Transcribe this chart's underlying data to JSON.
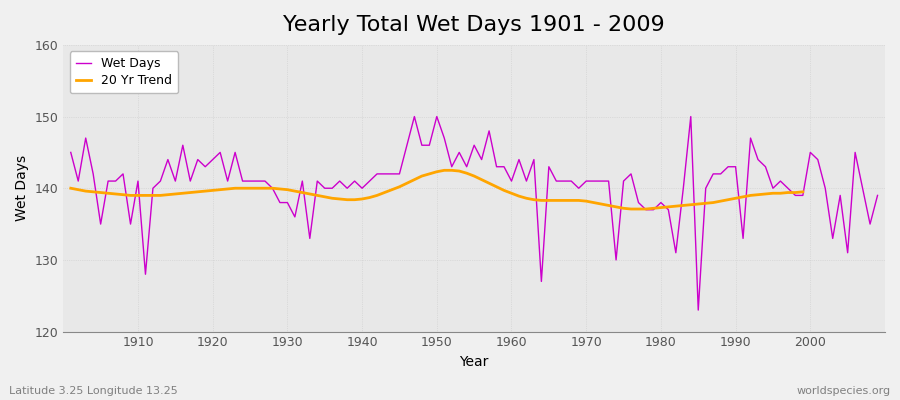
{
  "title": "Yearly Total Wet Days 1901 - 2009",
  "xlabel": "Year",
  "ylabel": "Wet Days",
  "footnote_left": "Latitude 3.25 Longitude 13.25",
  "footnote_right": "worldspecies.org",
  "legend_wet": "Wet Days",
  "legend_trend": "20 Yr Trend",
  "wet_color": "#CC00CC",
  "trend_color": "#FFA500",
  "fig_bg_color": "#F0F0F0",
  "plot_bg_color": "#E8E8E8",
  "grid_color": "#CCCCCC",
  "ylim": [
    120,
    160
  ],
  "xlim": [
    1900,
    2010
  ],
  "xticks": [
    1910,
    1920,
    1930,
    1940,
    1950,
    1960,
    1970,
    1980,
    1990,
    2000
  ],
  "yticks": [
    120,
    130,
    140,
    150,
    160
  ],
  "years": [
    1901,
    1902,
    1903,
    1904,
    1905,
    1906,
    1907,
    1908,
    1909,
    1910,
    1911,
    1912,
    1913,
    1914,
    1915,
    1916,
    1917,
    1918,
    1919,
    1920,
    1921,
    1922,
    1923,
    1924,
    1925,
    1926,
    1927,
    1928,
    1929,
    1930,
    1931,
    1932,
    1933,
    1934,
    1935,
    1936,
    1937,
    1938,
    1939,
    1940,
    1941,
    1942,
    1943,
    1944,
    1945,
    1946,
    1947,
    1948,
    1949,
    1950,
    1951,
    1952,
    1953,
    1954,
    1955,
    1956,
    1957,
    1958,
    1959,
    1960,
    1961,
    1962,
    1963,
    1964,
    1965,
    1966,
    1967,
    1968,
    1969,
    1970,
    1971,
    1972,
    1973,
    1974,
    1975,
    1976,
    1977,
    1978,
    1979,
    1980,
    1981,
    1982,
    1983,
    1984,
    1985,
    1986,
    1987,
    1988,
    1989,
    1990,
    1991,
    1992,
    1993,
    1994,
    1995,
    1996,
    1997,
    1998,
    1999,
    2000,
    2001,
    2002,
    2003,
    2004,
    2005,
    2006,
    2007,
    2008,
    2009
  ],
  "wet_days": [
    145,
    141,
    147,
    142,
    135,
    141,
    141,
    142,
    135,
    141,
    128,
    140,
    141,
    144,
    141,
    146,
    141,
    144,
    143,
    144,
    145,
    141,
    145,
    141,
    141,
    141,
    141,
    140,
    138,
    138,
    136,
    141,
    133,
    141,
    140,
    140,
    141,
    140,
    141,
    140,
    141,
    142,
    142,
    142,
    142,
    146,
    150,
    146,
    146,
    150,
    147,
    143,
    145,
    143,
    146,
    144,
    148,
    143,
    143,
    141,
    144,
    141,
    144,
    127,
    143,
    141,
    141,
    141,
    140,
    141,
    141,
    141,
    141,
    130,
    141,
    142,
    138,
    137,
    137,
    138,
    137,
    131,
    140,
    150,
    123,
    140,
    142,
    142,
    143,
    143,
    133,
    147,
    144,
    143,
    140,
    141,
    140,
    139,
    139,
    145,
    144,
    140,
    133,
    139,
    131,
    145,
    140,
    135,
    139
  ],
  "trend": [
    140.0,
    139.8,
    139.6,
    139.5,
    139.4,
    139.3,
    139.2,
    139.1,
    139.0,
    139.0,
    139.0,
    139.0,
    139.0,
    139.1,
    139.2,
    139.3,
    139.4,
    139.5,
    139.6,
    139.7,
    139.8,
    139.9,
    140.0,
    140.0,
    140.0,
    140.0,
    140.0,
    140.0,
    139.9,
    139.8,
    139.6,
    139.4,
    139.2,
    139.0,
    138.8,
    138.6,
    138.5,
    138.4,
    138.4,
    138.5,
    138.7,
    139.0,
    139.4,
    139.8,
    140.2,
    140.7,
    141.2,
    141.7,
    142.0,
    142.3,
    142.5,
    142.5,
    142.4,
    142.1,
    141.7,
    141.2,
    140.7,
    140.2,
    139.7,
    139.3,
    138.9,
    138.6,
    138.4,
    138.3,
    138.3,
    138.3,
    138.3,
    138.3,
    138.3,
    138.2,
    138.0,
    137.8,
    137.6,
    137.4,
    137.2,
    137.1,
    137.1,
    137.1,
    137.2,
    137.3,
    137.4,
    137.5,
    137.6,
    137.7,
    137.8,
    137.9,
    138.0,
    138.2,
    138.4,
    138.6,
    138.8,
    139.0,
    139.1,
    139.2,
    139.3,
    139.3,
    139.4,
    139.4,
    139.5
  ],
  "title_fontsize": 16,
  "axis_fontsize": 10,
  "tick_fontsize": 9,
  "footnote_fontsize": 8
}
